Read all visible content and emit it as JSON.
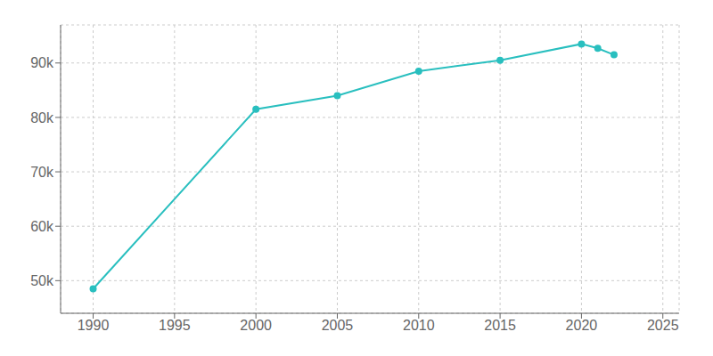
{
  "chart_data": {
    "type": "line",
    "x": [
      1990,
      2000,
      2005,
      2010,
      2015,
      2020,
      2021,
      2022
    ],
    "values": [
      48500,
      81500,
      84000,
      88500,
      90500,
      93500,
      92700,
      91500
    ],
    "color": "#29bfbf",
    "marker": "o",
    "xlim": [
      1988,
      2026
    ],
    "ylim": [
      44000,
      97000
    ],
    "xticks": [
      1990,
      1995,
      2000,
      2005,
      2010,
      2015,
      2020,
      2025
    ],
    "yticks": [
      {
        "value": 50000,
        "label": "50k"
      },
      {
        "value": 60000,
        "label": "60k"
      },
      {
        "value": 70000,
        "label": "70k"
      },
      {
        "value": 80000,
        "label": "80k"
      },
      {
        "value": 90000,
        "label": "90k"
      }
    ],
    "grid": true
  }
}
